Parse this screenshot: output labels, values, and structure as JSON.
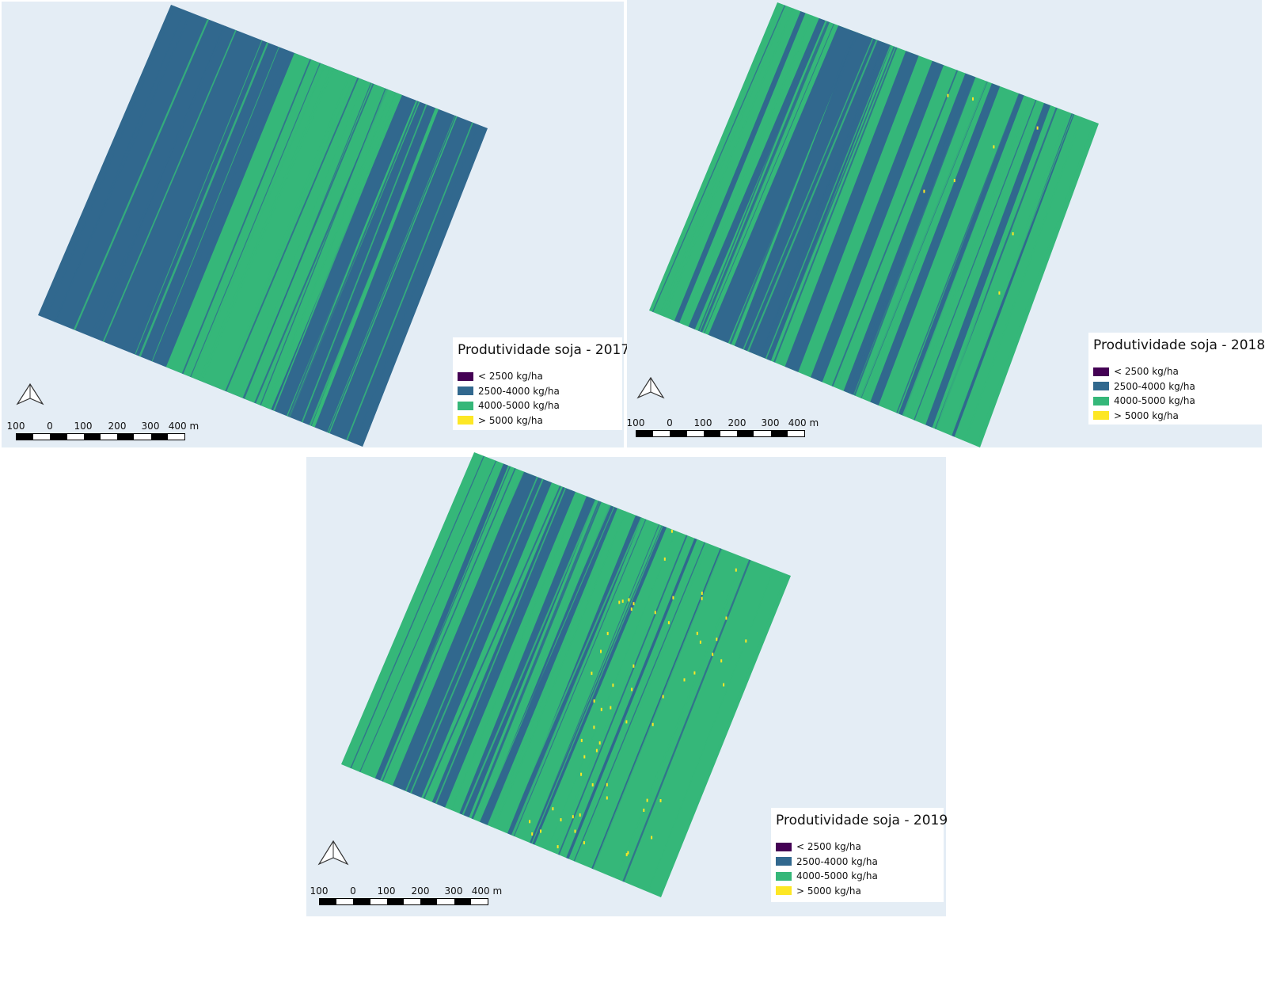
{
  "maps": [
    {
      "id": "2017",
      "legend_title": "Produtividade soja - 2017",
      "base_class": 1,
      "stripe_class": 2
    },
    {
      "id": "2018",
      "legend_title": "Produtividade soja - 2018",
      "base_class": 2,
      "stripe_class": 1
    },
    {
      "id": "2019",
      "legend_title": "Produtividade soja - 2019",
      "base_class": 2,
      "stripe_class": 1
    }
  ],
  "legend_classes": [
    {
      "label": "< 2500 kg/ha",
      "color": "#440154"
    },
    {
      "label": "2500-4000 kg/ha",
      "color": "#31688e"
    },
    {
      "label": "4000-5000 kg/ha",
      "color": "#35b779"
    },
    {
      "label": "> 5000 kg/ha",
      "color": "#fde725"
    }
  ],
  "scale_bar": {
    "labels": [
      "100",
      "0",
      "100",
      "200",
      "300",
      "400 m"
    ]
  },
  "colors": {
    "map_background": "#e4edf5",
    "outline": "#1f3f5f"
  },
  "icons": {
    "north_arrow": "north-arrow-icon"
  }
}
